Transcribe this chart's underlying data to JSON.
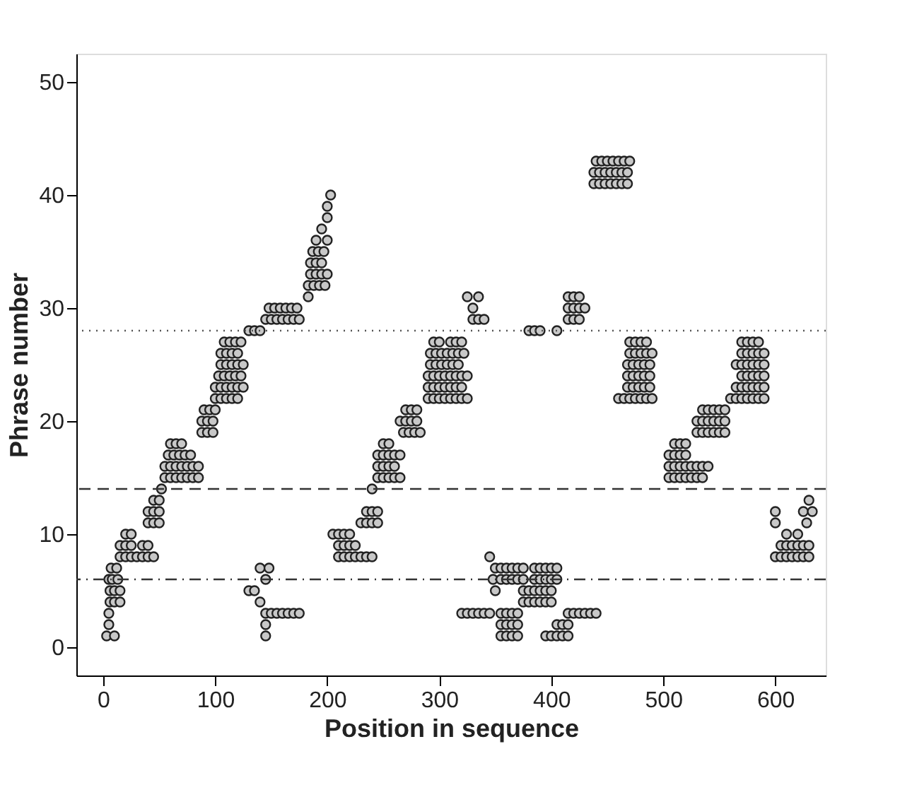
{
  "chart_data": {
    "type": "scatter",
    "xlabel": "Position in sequence",
    "ylabel": "Phrase number",
    "xlim": [
      -24,
      645
    ],
    "ylim": [
      -2.5,
      52.5
    ],
    "xticks": [
      0,
      100,
      200,
      300,
      400,
      500,
      600
    ],
    "yticks": [
      0,
      10,
      20,
      30,
      40,
      50
    ],
    "grid": false,
    "marker": "circle",
    "ref_lines": [
      {
        "axis": "y",
        "value": 28,
        "line_style": "dotted",
        "color": "#555555"
      },
      {
        "axis": "y",
        "value": 14,
        "line_style": "dashed",
        "color": "#333333"
      },
      {
        "axis": "y",
        "value": 6,
        "line_style": "dashdot",
        "color": "#333333"
      }
    ],
    "series": [
      {
        "color": "#c8c8c8",
        "x": [
          3,
          10,
          5,
          5,
          6,
          10,
          15,
          6,
          10,
          15,
          5,
          8,
          13,
          7,
          12
        ],
        "values": [
          1,
          1,
          2,
          3,
          4,
          4,
          4,
          5,
          5,
          5,
          6,
          6,
          6,
          7,
          7
        ]
      },
      {
        "color": "#c8c8c8",
        "x": [
          15,
          20,
          25,
          30,
          35,
          40,
          45,
          15,
          20,
          25,
          35,
          40,
          20,
          25
        ],
        "values": [
          8,
          8,
          8,
          8,
          8,
          8,
          8,
          9,
          9,
          9,
          9,
          9,
          10,
          10
        ]
      },
      {
        "color": "#c8c8c8",
        "x": [
          40,
          45,
          50,
          40,
          45,
          50,
          45,
          50,
          52
        ],
        "values": [
          11,
          11,
          11,
          12,
          12,
          12,
          13,
          13,
          14
        ]
      },
      {
        "color": "#c8c8c8",
        "x": [
          55,
          60,
          65,
          70,
          75,
          80,
          85,
          55,
          60,
          65,
          70,
          75,
          80,
          85,
          58,
          63,
          68,
          73,
          78,
          60,
          65,
          70
        ],
        "values": [
          15,
          15,
          15,
          15,
          15,
          15,
          15,
          16,
          16,
          16,
          16,
          16,
          16,
          16,
          17,
          17,
          17,
          17,
          17,
          18,
          18,
          18
        ]
      },
      {
        "color": "#c8c8c8",
        "x": [
          88,
          93,
          98,
          88,
          93,
          98,
          90,
          95,
          100
        ],
        "values": [
          19,
          19,
          19,
          20,
          20,
          20,
          21,
          21,
          21
        ]
      },
      {
        "color": "#c8c8c8",
        "x": [
          100,
          105,
          110,
          115,
          120,
          100,
          105,
          110,
          115,
          120,
          125,
          103,
          108,
          113,
          118,
          123,
          105,
          110,
          115,
          120,
          125,
          105,
          110,
          115,
          120,
          108,
          113,
          118,
          123
        ],
        "values": [
          22,
          22,
          22,
          22,
          22,
          23,
          23,
          23,
          23,
          23,
          23,
          24,
          24,
          24,
          24,
          24,
          25,
          25,
          25,
          25,
          25,
          26,
          26,
          26,
          26,
          27,
          27,
          27,
          27
        ]
      },
      {
        "color": "#c8c8c8",
        "x": [
          130,
          135,
          140
        ],
        "values": [
          28,
          28,
          28
        ]
      },
      {
        "color": "#c8c8c8",
        "x": [
          145,
          150,
          155,
          160,
          165,
          170,
          175,
          148,
          153,
          158,
          163,
          168,
          173
        ],
        "values": [
          29,
          29,
          29,
          29,
          29,
          29,
          29,
          30,
          30,
          30,
          30,
          30,
          30
        ]
      },
      {
        "color": "#c8c8c8",
        "x": [
          183,
          183,
          188,
          193,
          198,
          185,
          190,
          195,
          200,
          185,
          190,
          195,
          187,
          192,
          197,
          190,
          200,
          195,
          200,
          200,
          203
        ],
        "values": [
          31,
          32,
          32,
          32,
          32,
          33,
          33,
          33,
          33,
          34,
          34,
          34,
          35,
          35,
          35,
          36,
          36,
          37,
          38,
          39,
          40
        ]
      },
      {
        "color": "#c8c8c8",
        "x": [
          130,
          135,
          140,
          140,
          148,
          145,
          145,
          150,
          155,
          160,
          165,
          170,
          175,
          145,
          145
        ],
        "values": [
          5,
          5,
          4,
          7,
          7,
          6,
          3,
          3,
          3,
          3,
          3,
          3,
          3,
          2,
          1
        ]
      },
      {
        "color": "#c8c8c8",
        "x": [
          210,
          215,
          220,
          225,
          230,
          235,
          240,
          210,
          215,
          220,
          225,
          205,
          210,
          215,
          220,
          230,
          235,
          240,
          245,
          235,
          240,
          245
        ],
        "values": [
          8,
          8,
          8,
          8,
          8,
          8,
          8,
          9,
          9,
          9,
          9,
          10,
          10,
          10,
          10,
          11,
          11,
          11,
          11,
          12,
          12,
          12
        ]
      },
      {
        "color": "#c8c8c8",
        "x": [
          240,
          245,
          250,
          255,
          260,
          265,
          245,
          250,
          255,
          260,
          245,
          250,
          255,
          260,
          265,
          250,
          255
        ],
        "values": [
          14,
          15,
          15,
          15,
          15,
          15,
          16,
          16,
          16,
          16,
          17,
          17,
          17,
          17,
          17,
          18,
          18
        ]
      },
      {
        "color": "#c8c8c8",
        "x": [
          268,
          273,
          278,
          283,
          265,
          270,
          275,
          280,
          270,
          275,
          280
        ],
        "values": [
          19,
          19,
          19,
          19,
          20,
          20,
          20,
          20,
          21,
          21,
          21
        ]
      },
      {
        "color": "#c8c8c8",
        "x": [
          290,
          295,
          300,
          305,
          310,
          315,
          320,
          325,
          290,
          295,
          300,
          305,
          310,
          315,
          320,
          290,
          295,
          300,
          305,
          310,
          315,
          320,
          325,
          292,
          297,
          302,
          307,
          312,
          317,
          292,
          297,
          302,
          307,
          312,
          317,
          322,
          295,
          300,
          310,
          315,
          320
        ],
        "values": [
          22,
          22,
          22,
          22,
          22,
          22,
          22,
          22,
          23,
          23,
          23,
          23,
          23,
          23,
          23,
          24,
          24,
          24,
          24,
          24,
          24,
          24,
          24,
          25,
          25,
          25,
          25,
          25,
          25,
          26,
          26,
          26,
          26,
          26,
          26,
          26,
          27,
          27,
          27,
          27,
          27
        ]
      },
      {
        "color": "#c8c8c8",
        "x": [
          325,
          335,
          330,
          330,
          335,
          340
        ],
        "values": [
          31,
          31,
          30,
          29,
          29,
          29
        ]
      },
      {
        "color": "#c8c8c8",
        "x": [
          380,
          385,
          390,
          405
        ],
        "values": [
          28,
          28,
          28,
          28
        ]
      },
      {
        "color": "#c8c8c8",
        "x": [
          415,
          420,
          425,
          415,
          420,
          425,
          430,
          415,
          420,
          425
        ],
        "values": [
          31,
          31,
          31,
          30,
          30,
          30,
          30,
          29,
          29,
          29
        ]
      },
      {
        "color": "#c8c8c8",
        "x": [
          440,
          445,
          450,
          455,
          460,
          465,
          470,
          438,
          443,
          448,
          453,
          458,
          463,
          468,
          438,
          443,
          448,
          453,
          458,
          463,
          468
        ],
        "values": [
          43,
          43,
          43,
          43,
          43,
          43,
          43,
          42,
          42,
          42,
          42,
          42,
          42,
          42,
          41,
          41,
          41,
          41,
          41,
          41,
          41
        ]
      },
      {
        "color": "#c8c8c8",
        "x": [
          345,
          350,
          355,
          360,
          365,
          370,
          375,
          385,
          390,
          395,
          400,
          405,
          348,
          355,
          360,
          365,
          370,
          375,
          385,
          390,
          395,
          400,
          405,
          350,
          375,
          380,
          385,
          390,
          395,
          400,
          375,
          380,
          385,
          390,
          395,
          400
        ],
        "values": [
          8,
          7,
          7,
          7,
          7,
          7,
          7,
          7,
          7,
          7,
          7,
          7,
          6,
          6,
          6,
          6,
          6,
          6,
          6,
          6,
          6,
          6,
          6,
          5,
          5,
          5,
          5,
          5,
          5,
          5,
          4,
          4,
          4,
          4,
          4,
          4
        ]
      },
      {
        "color": "#c8c8c8",
        "x": [
          320,
          325,
          330,
          335,
          340,
          345,
          355,
          360,
          365,
          370,
          415,
          420,
          425,
          430,
          435,
          440,
          355,
          360,
          365,
          370,
          405,
          410,
          415,
          355,
          360,
          365,
          370,
          395,
          400,
          405,
          410,
          415
        ],
        "values": [
          3,
          3,
          3,
          3,
          3,
          3,
          3,
          3,
          3,
          3,
          3,
          3,
          3,
          3,
          3,
          3,
          2,
          2,
          2,
          2,
          2,
          2,
          2,
          1,
          1,
          1,
          1,
          1,
          1,
          1,
          1,
          1
        ]
      },
      {
        "color": "#c8c8c8",
        "x": [
          470,
          475,
          480,
          485,
          470,
          475,
          480,
          485,
          490,
          468,
          473,
          478,
          483,
          488,
          468,
          473,
          478,
          483,
          488,
          468,
          473,
          478,
          483,
          488,
          460,
          465,
          470,
          475,
          480,
          485,
          490
        ],
        "values": [
          27,
          27,
          27,
          27,
          26,
          26,
          26,
          26,
          26,
          25,
          25,
          25,
          25,
          25,
          24,
          24,
          24,
          24,
          24,
          23,
          23,
          23,
          23,
          23,
          22,
          22,
          22,
          22,
          22,
          22,
          22
        ]
      },
      {
        "color": "#c8c8c8",
        "x": [
          510,
          515,
          520,
          505,
          510,
          515,
          520,
          505,
          510,
          515,
          520,
          525,
          530,
          535,
          540,
          505,
          510,
          515,
          520,
          525,
          530,
          535
        ],
        "values": [
          18,
          18,
          18,
          17,
          17,
          17,
          17,
          16,
          16,
          16,
          16,
          16,
          16,
          16,
          16,
          15,
          15,
          15,
          15,
          15,
          15,
          15
        ]
      },
      {
        "color": "#c8c8c8",
        "x": [
          535,
          540,
          545,
          550,
          555,
          530,
          535,
          540,
          545,
          550,
          555,
          530,
          535,
          540,
          545,
          550,
          555
        ],
        "values": [
          21,
          21,
          21,
          21,
          21,
          20,
          20,
          20,
          20,
          20,
          20,
          19,
          19,
          19,
          19,
          19,
          19
        ]
      },
      {
        "color": "#c8c8c8",
        "x": [
          570,
          575,
          580,
          585,
          570,
          575,
          580,
          585,
          590,
          565,
          570,
          575,
          580,
          585,
          590,
          570,
          575,
          580,
          585,
          590,
          565,
          570,
          575,
          580,
          585,
          590,
          560,
          565,
          570,
          575,
          580,
          585,
          590
        ],
        "values": [
          27,
          27,
          27,
          27,
          26,
          26,
          26,
          26,
          26,
          25,
          25,
          25,
          25,
          25,
          25,
          24,
          24,
          24,
          24,
          24,
          23,
          23,
          23,
          23,
          23,
          23,
          22,
          22,
          22,
          22,
          22,
          22,
          22
        ]
      },
      {
        "color": "#c8c8c8",
        "x": [
          600,
          625,
          633,
          600,
          628,
          630,
          610,
          620,
          605,
          610,
          615,
          620,
          625,
          630,
          600,
          605,
          610,
          615,
          620,
          625,
          630
        ],
        "values": [
          12,
          12,
          12,
          11,
          11,
          13,
          10,
          10,
          9,
          9,
          9,
          9,
          9,
          9,
          8,
          8,
          8,
          8,
          8,
          8,
          8
        ]
      }
    ]
  }
}
